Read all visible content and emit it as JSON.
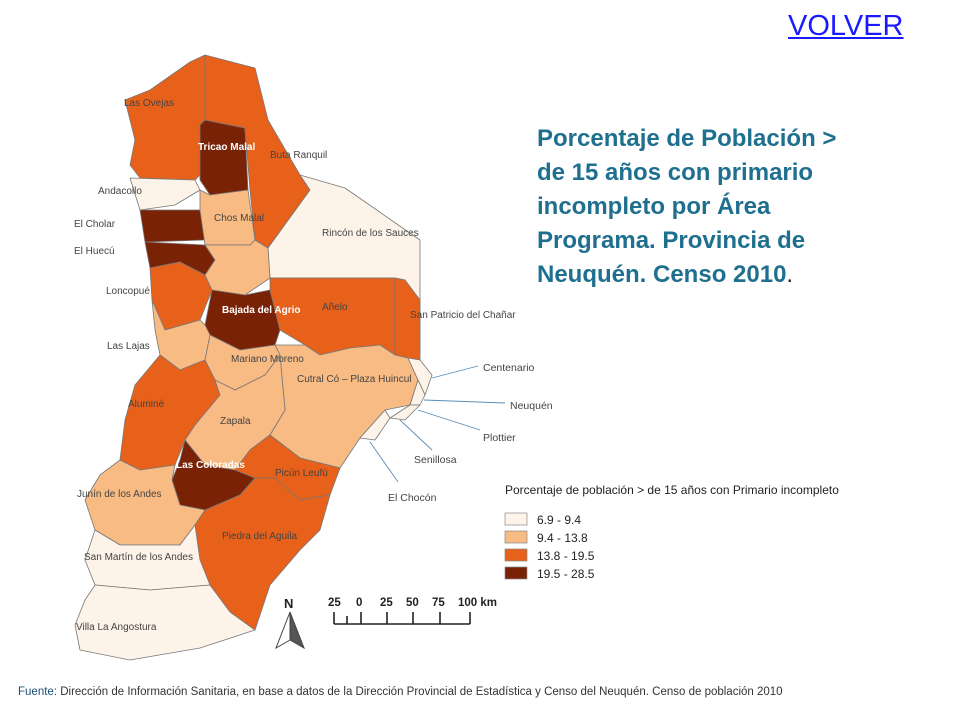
{
  "nav": {
    "back_label": "VOLVER"
  },
  "title": {
    "text": "Porcentaje de Población > de 15 años con primario incompleto por Área Programa. Provincia de Neuquén. Censo 2010",
    "suffix": "."
  },
  "source": {
    "label": "Fuente:",
    "text": "Dirección de Información Sanitaria, en base a datos de la Dirección Provincial de Estadística y Censo del Neuquén. Censo de población 2010"
  },
  "legend": {
    "title": "Porcentaje de población > de 15 años con Primario incompleto",
    "items": [
      {
        "label": "6.9 - 9.4",
        "color": "#fdf3e9"
      },
      {
        "label": "9.4 - 13.8",
        "color": "#f9bb84"
      },
      {
        "label": "13.8 - 19.5",
        "color": "#e8611a"
      },
      {
        "label": "19.5 - 28.5",
        "color": "#7a2206"
      }
    ]
  },
  "scale_bar": {
    "labels": [
      "25",
      "0",
      "25",
      "50",
      "75",
      "100 km"
    ]
  },
  "north_arrow": {
    "label": "N",
    "icon": "north-arrow-icon"
  },
  "areas": {
    "las_ovejas": "Las Ovejas",
    "tricao_malal": "Tricao Malal",
    "buta_ranquil": "Buta Ranquil",
    "andacollo": "Andacollo",
    "el_cholar": "El Cholar",
    "chos_malal": "Chos Malal",
    "rincon_de_los_sauces": "Rincón de los Sauces",
    "el_huecu": "El Huecú",
    "loncopue": "Loncopué",
    "bajada_del_agrio": "Bajada del Agrio",
    "anelo": "Añelo",
    "san_patricio": "San Patricio del Chañar",
    "las_lajas": "Las Lajas",
    "mariano_moreno": "Mariano Moreno",
    "cutral_co": "Cutral Có – Plaza Huincul",
    "centenario": "Centenario",
    "alumine": "Aluminé",
    "neuquen": "Neuquén",
    "zapala": "Zapala",
    "plottier": "Plottier",
    "senillosa": "Senillosa",
    "las_coloradas": "Las Coloradas",
    "picun_leufu": "Picún Leufú",
    "el_chocon": "El Chocón",
    "junin": "Junín de los Andes",
    "piedra_del_aguila": "Piedra del Aguila",
    "san_martin": "San Martín de los Andes",
    "villa_la_angostura": "Villa La Angostura"
  }
}
